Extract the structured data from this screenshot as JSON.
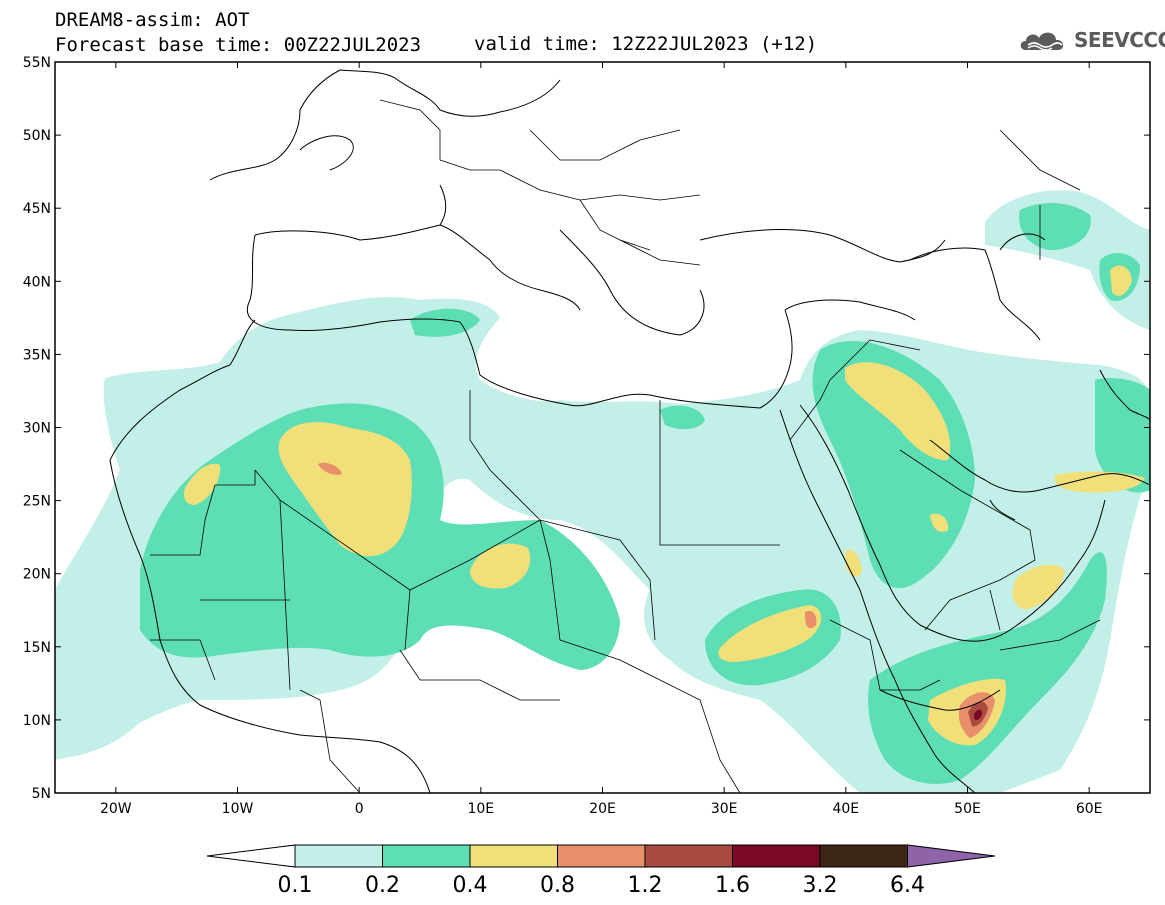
{
  "header": {
    "title": "DREAM8-assim: AOT",
    "base_label": "Forecast base time: 00Z22JUL2023",
    "valid_label": "valid time: 12Z22JUL2023 (+12)",
    "logo_text": "SEEVCCC"
  },
  "map": {
    "extent": {
      "lon": [
        -25,
        65
      ],
      "lat": [
        5,
        55
      ]
    },
    "lat_ticks": [
      {
        "value": 55,
        "label": "55N"
      },
      {
        "value": 50,
        "label": "50N"
      },
      {
        "value": 45,
        "label": "45N"
      },
      {
        "value": 40,
        "label": "40N"
      },
      {
        "value": 35,
        "label": "35N"
      },
      {
        "value": 30,
        "label": "30N"
      },
      {
        "value": 25,
        "label": "25N"
      },
      {
        "value": 20,
        "label": "20N"
      },
      {
        "value": 15,
        "label": "15N"
      },
      {
        "value": 10,
        "label": "10N"
      },
      {
        "value": 5,
        "label": "5N"
      }
    ],
    "lon_ticks": [
      {
        "value": -20,
        "label": "20W"
      },
      {
        "value": -10,
        "label": "10W"
      },
      {
        "value": 0,
        "label": "0"
      },
      {
        "value": 10,
        "label": "10E"
      },
      {
        "value": 20,
        "label": "20E"
      },
      {
        "value": 30,
        "label": "30E"
      },
      {
        "value": 40,
        "label": "40E"
      },
      {
        "value": 50,
        "label": "50E"
      },
      {
        "value": 60,
        "label": "60E"
      }
    ]
  },
  "colorbar": {
    "labels": [
      "0.1",
      "0.2",
      "0.4",
      "0.8",
      "1.2",
      "1.6",
      "3.2",
      "6.4"
    ],
    "colors": [
      "#c2efe8",
      "#5ddeb4",
      "#f1e07a",
      "#e8906b",
      "#a84a3d",
      "#7a0a28",
      "#3b2516"
    ],
    "low_color": "#ffffff",
    "high_color": "#8f63a8"
  },
  "palette": {
    "aot_0_1": "#c2efe8",
    "aot_0_2": "#5ddeb4",
    "aot_0_4": "#f1e07a",
    "aot_0_8": "#e8906b",
    "aot_1_2": "#a84a3d"
  }
}
